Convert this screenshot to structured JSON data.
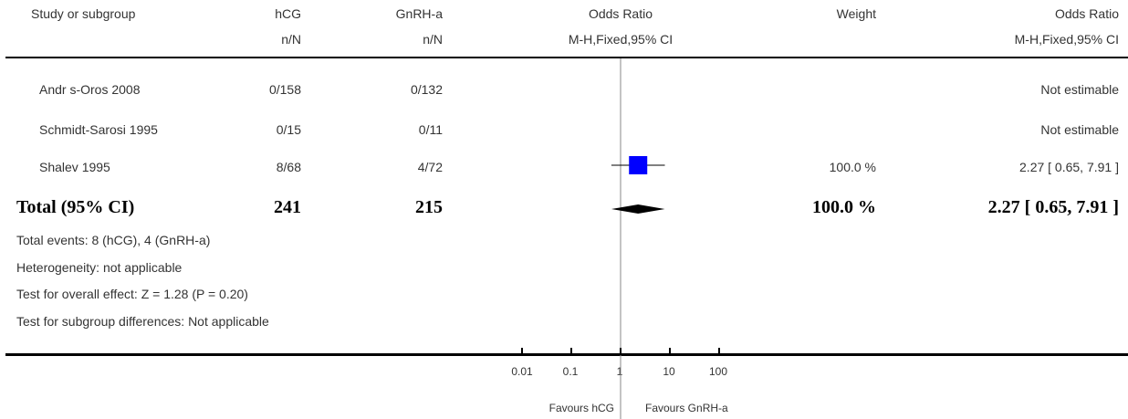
{
  "header": {
    "col_study": "Study or subgroup",
    "col_exp": "hCG",
    "col_exp_sub": "n/N",
    "col_ctrl": "GnRH-a",
    "col_ctrl_sub": "n/N",
    "col_plot": "Odds Ratio",
    "col_plot_sub": "M-H,Fixed,95% CI",
    "col_weight": "Weight",
    "col_or": "Odds Ratio",
    "col_or_sub": "M-H,Fixed,95% CI"
  },
  "rows": [
    {
      "study": "Andr   s-Oros 2008",
      "exp": "0/158",
      "ctrl": "0/132",
      "weight": "",
      "or_text": "Not estimable"
    },
    {
      "study": "Schmidt-Sarosi 1995",
      "exp": "0/15",
      "ctrl": "0/11",
      "weight": "",
      "or_text": "Not estimable"
    },
    {
      "study": "Shalev 1995",
      "exp": "8/68",
      "ctrl": "4/72",
      "weight": "100.0 %",
      "or_text": "2.27 [ 0.65, 7.91 ]"
    }
  ],
  "total": {
    "label": "Total (95% CI)",
    "exp": "241",
    "ctrl": "215",
    "weight": "100.0 %",
    "or_text": "2.27 [ 0.65, 7.91 ]"
  },
  "footnotes": {
    "events": "Total events: 8 (hCG), 4 (GnRH-a)",
    "heterogeneity": "Heterogeneity: not applicable",
    "overall": "Test for overall effect: Z = 1.28 (P = 0.20)",
    "subgroup": "Test for subgroup differences: Not applicable"
  },
  "axis": {
    "favours_left": "Favours hCG",
    "favours_right": "Favours GnRH-a"
  },
  "colors": {
    "square": "#0000ff",
    "diamond": "#000000"
  },
  "chart_data": {
    "type": "forest",
    "scale": "log",
    "xlim": [
      0.01,
      100
    ],
    "ticks": [
      0.01,
      0.1,
      1,
      10,
      100
    ],
    "tick_labels": [
      "0.01",
      "0.1",
      "1",
      "10",
      "100"
    ],
    "null_value": 1,
    "studies": [
      {
        "name": "Shalev 1995",
        "or": 2.27,
        "ci": [
          0.65,
          7.91
        ],
        "weight": 100.0
      }
    ],
    "pooled": {
      "or": 2.27,
      "ci": [
        0.65,
        7.91
      ]
    }
  }
}
